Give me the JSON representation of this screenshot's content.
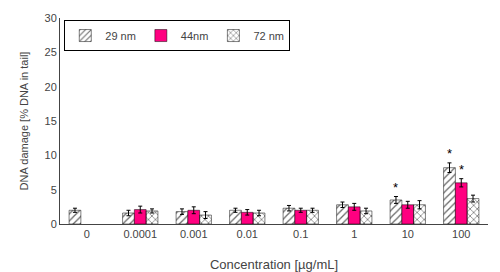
{
  "chart_data": {
    "type": "bar",
    "xlabel": "Concentration [µg/mL]",
    "ylabel": "DNA damage [% DNA in tail]",
    "categories": [
      "0",
      "0.0001",
      "0.001",
      "0.01",
      "0.1",
      "1",
      "10",
      "100"
    ],
    "series": [
      {
        "name": "29 nm",
        "color": "#5B9BD5",
        "values": [
          2.0,
          1.6,
          1.8,
          2.0,
          2.3,
          2.8,
          3.5,
          8.2
        ],
        "err": [
          0.3,
          0.4,
          0.4,
          0.3,
          0.4,
          0.4,
          0.5,
          0.7
        ]
      },
      {
        "name": "44nm",
        "color": "#FF0080",
        "values": [
          null,
          2.1,
          2.0,
          1.7,
          2.0,
          2.5,
          2.8,
          6.0
        ],
        "err": [
          null,
          0.5,
          0.5,
          0.4,
          0.3,
          0.5,
          0.5,
          0.6
        ]
      },
      {
        "name": "72 nm",
        "color": "#70AD47",
        "values": [
          null,
          1.9,
          1.3,
          1.6,
          2.0,
          1.9,
          2.8,
          3.7
        ],
        "err": [
          null,
          0.3,
          0.5,
          0.4,
          0.3,
          0.4,
          0.6,
          0.5
        ]
      }
    ],
    "annotations": [
      {
        "text": "*",
        "category": "10",
        "series": "29 nm"
      },
      {
        "text": "*",
        "category": "100",
        "series": "29 nm"
      },
      {
        "text": "*",
        "category": "100",
        "series": "44nm"
      }
    ],
    "ylim": [
      0,
      30
    ],
    "yticks": [
      0,
      5,
      10,
      15,
      20,
      25,
      30
    ],
    "grid": false,
    "legend": "upper left"
  }
}
